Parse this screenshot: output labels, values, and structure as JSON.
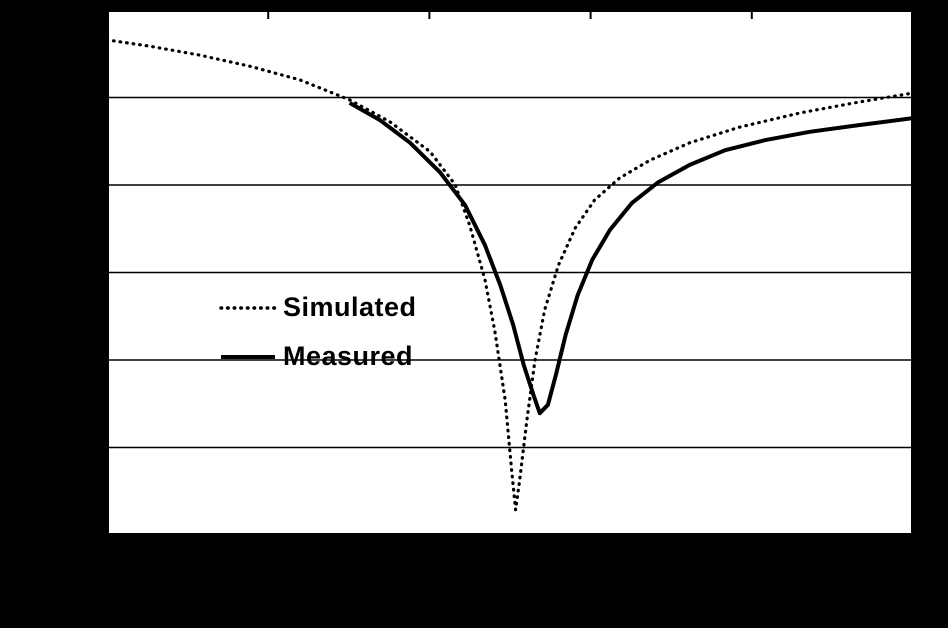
{
  "page": {
    "background_color": "#000000",
    "plot_background_color": "#ffffff",
    "line_color": "#000000",
    "gridline_color": "#000000"
  },
  "chart_data": {
    "type": "line",
    "title": "",
    "xlabel": "",
    "ylabel": "",
    "axis_tick_labels_visible": false,
    "grid": "horizontal-gridlines-on",
    "x_divisions": 5,
    "y_divisions": 6,
    "coords": "points are [x,y] fractions of plot area; y measured from top edge",
    "legend": {
      "position": "inside-center-left",
      "entries": [
        "Simulated",
        "Measured"
      ]
    },
    "series": [
      {
        "name": "Simulated",
        "style": "dotted",
        "color": "#000000",
        "points": [
          [
            0.0,
            0.057
          ],
          [
            0.053,
            0.069
          ],
          [
            0.115,
            0.086
          ],
          [
            0.177,
            0.107
          ],
          [
            0.239,
            0.133
          ],
          [
            0.301,
            0.171
          ],
          [
            0.351,
            0.213
          ],
          [
            0.401,
            0.27
          ],
          [
            0.432,
            0.333
          ],
          [
            0.45,
            0.41
          ],
          [
            0.469,
            0.514
          ],
          [
            0.481,
            0.61
          ],
          [
            0.494,
            0.743
          ],
          [
            0.502,
            0.876
          ],
          [
            0.507,
            0.952
          ],
          [
            0.512,
            0.895
          ],
          [
            0.521,
            0.781
          ],
          [
            0.531,
            0.667
          ],
          [
            0.543,
            0.571
          ],
          [
            0.56,
            0.486
          ],
          [
            0.581,
            0.415
          ],
          [
            0.605,
            0.362
          ],
          [
            0.636,
            0.32
          ],
          [
            0.674,
            0.286
          ],
          [
            0.723,
            0.253
          ],
          [
            0.785,
            0.223
          ],
          [
            0.86,
            0.196
          ],
          [
            0.934,
            0.175
          ],
          [
            1.0,
            0.158
          ]
        ]
      },
      {
        "name": "Measured",
        "style": "solid",
        "color": "#000000",
        "points": [
          [
            0.301,
            0.177
          ],
          [
            0.339,
            0.21
          ],
          [
            0.376,
            0.253
          ],
          [
            0.413,
            0.309
          ],
          [
            0.444,
            0.371
          ],
          [
            0.469,
            0.448
          ],
          [
            0.488,
            0.524
          ],
          [
            0.504,
            0.6
          ],
          [
            0.517,
            0.676
          ],
          [
            0.529,
            0.733
          ],
          [
            0.537,
            0.768
          ],
          [
            0.547,
            0.752
          ],
          [
            0.557,
            0.695
          ],
          [
            0.569,
            0.619
          ],
          [
            0.584,
            0.543
          ],
          [
            0.602,
            0.476
          ],
          [
            0.624,
            0.419
          ],
          [
            0.651,
            0.368
          ],
          [
            0.684,
            0.328
          ],
          [
            0.723,
            0.295
          ],
          [
            0.767,
            0.267
          ],
          [
            0.816,
            0.248
          ],
          [
            0.872,
            0.232
          ],
          [
            0.934,
            0.219
          ],
          [
            1.0,
            0.206
          ]
        ]
      }
    ]
  }
}
